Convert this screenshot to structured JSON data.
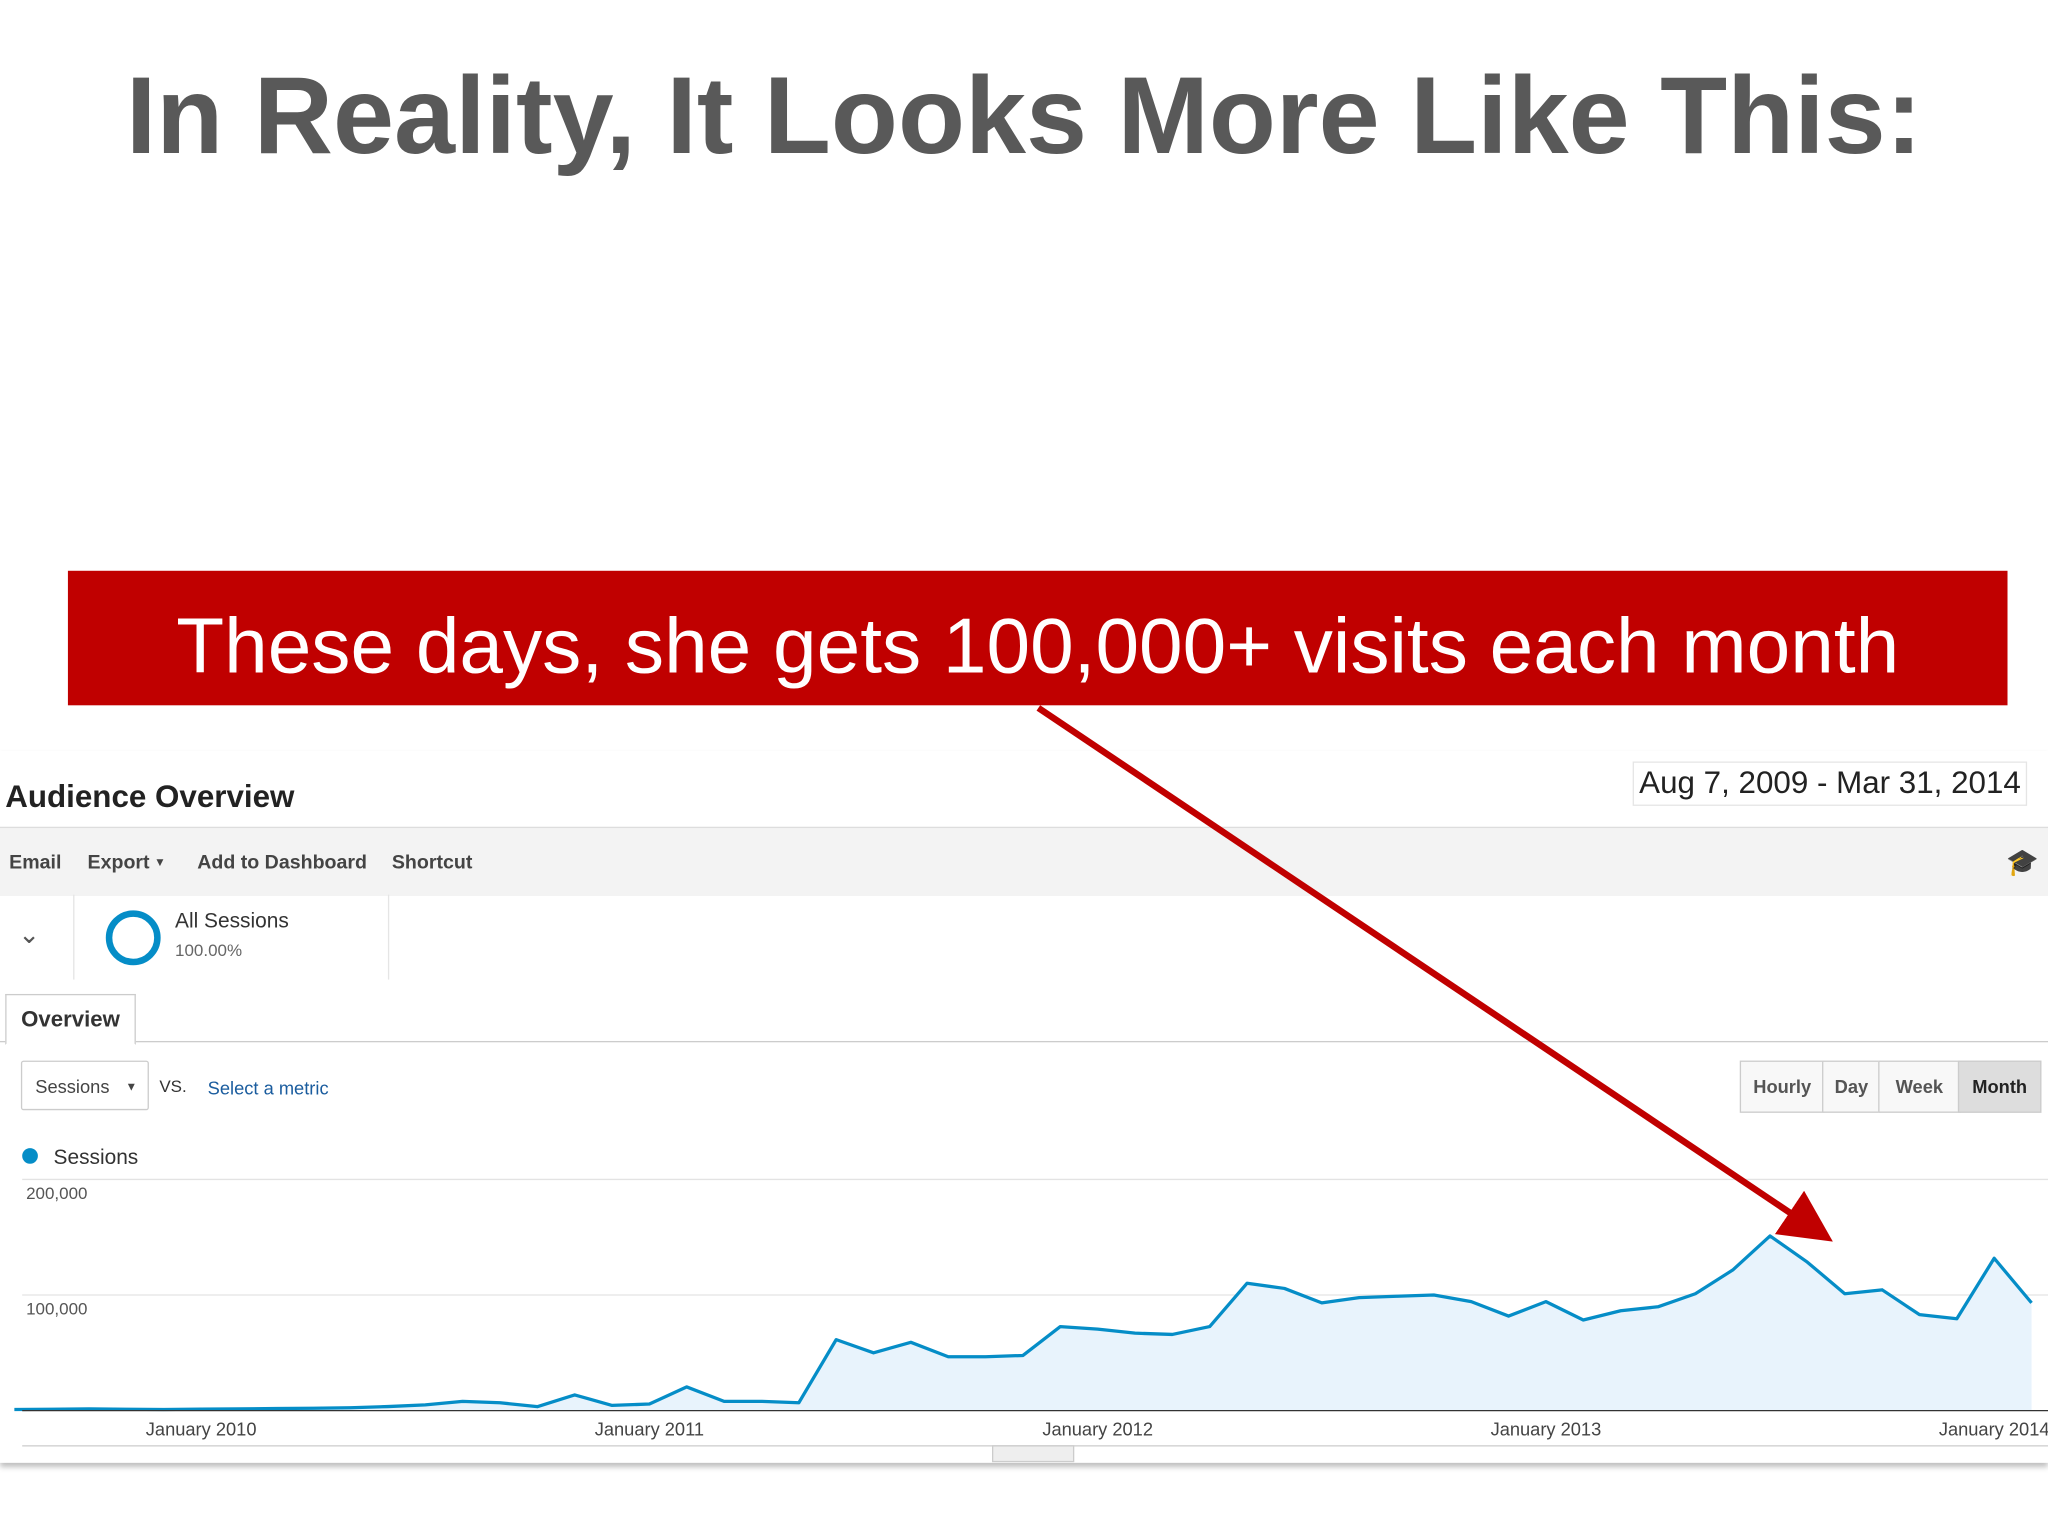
{
  "slide": {
    "title": "In Reality, It Looks More Like This:",
    "banner": "These days, she gets 100,000+ visits each month"
  },
  "analytics": {
    "heading": "Audience Overview",
    "date_range": "Aug 7, 2009 - Mar 31, 2014",
    "toolbar": [
      "Email",
      "Export",
      "Add to Dashboard",
      "Shortcut"
    ],
    "segment": {
      "name": "All Sessions",
      "share": "100.00%"
    },
    "tab": "Overview",
    "metric": "Sessions",
    "vs": "VS.",
    "select_metric": "Select a metric",
    "granularity": [
      "Hourly",
      "Day",
      "Week",
      "Month"
    ]
  },
  "chart_data": {
    "type": "line",
    "categories": [
      null,
      null,
      null,
      null,
      null,
      "January 2010",
      null,
      null,
      null,
      null,
      null,
      null,
      null,
      null,
      null,
      null,
      null,
      "January 2011",
      null,
      null,
      null,
      null,
      null,
      null,
      null,
      null,
      null,
      null,
      null,
      "January 2012",
      null,
      null,
      null,
      null,
      null,
      null,
      null,
      null,
      null,
      null,
      null,
      "January 2013",
      null,
      null,
      null,
      null,
      null,
      null,
      null,
      null,
      null,
      null,
      null,
      "January 2014",
      null
    ],
    "series": [
      {
        "name": "Sessions",
        "color": "#058dc7",
        "values": [
          1000,
          1200,
          1500,
          1200,
          1000,
          1300,
          1500,
          1800,
          2000,
          2500,
          3500,
          5000,
          8000,
          6800,
          3400,
          13600,
          4500,
          5700,
          20500,
          8000,
          8000,
          6800,
          61400,
          50000,
          59100,
          46600,
          46600,
          47700,
          72700,
          70500,
          67000,
          65900,
          72700,
          110200,
          105700,
          93200,
          97700,
          98900,
          100000,
          94300,
          81800,
          94300,
          78400,
          86400,
          89800,
          101100,
          121600,
          151100,
          128400,
          101100,
          104500,
          83000,
          79500,
          131800,
          93200
        ]
      }
    ],
    "ylim": [
      0,
      200000
    ],
    "yticks": [
      {
        "value": 100000,
        "label": "100,000"
      },
      {
        "value": 200000,
        "label": "200,000"
      }
    ],
    "grid": true
  }
}
